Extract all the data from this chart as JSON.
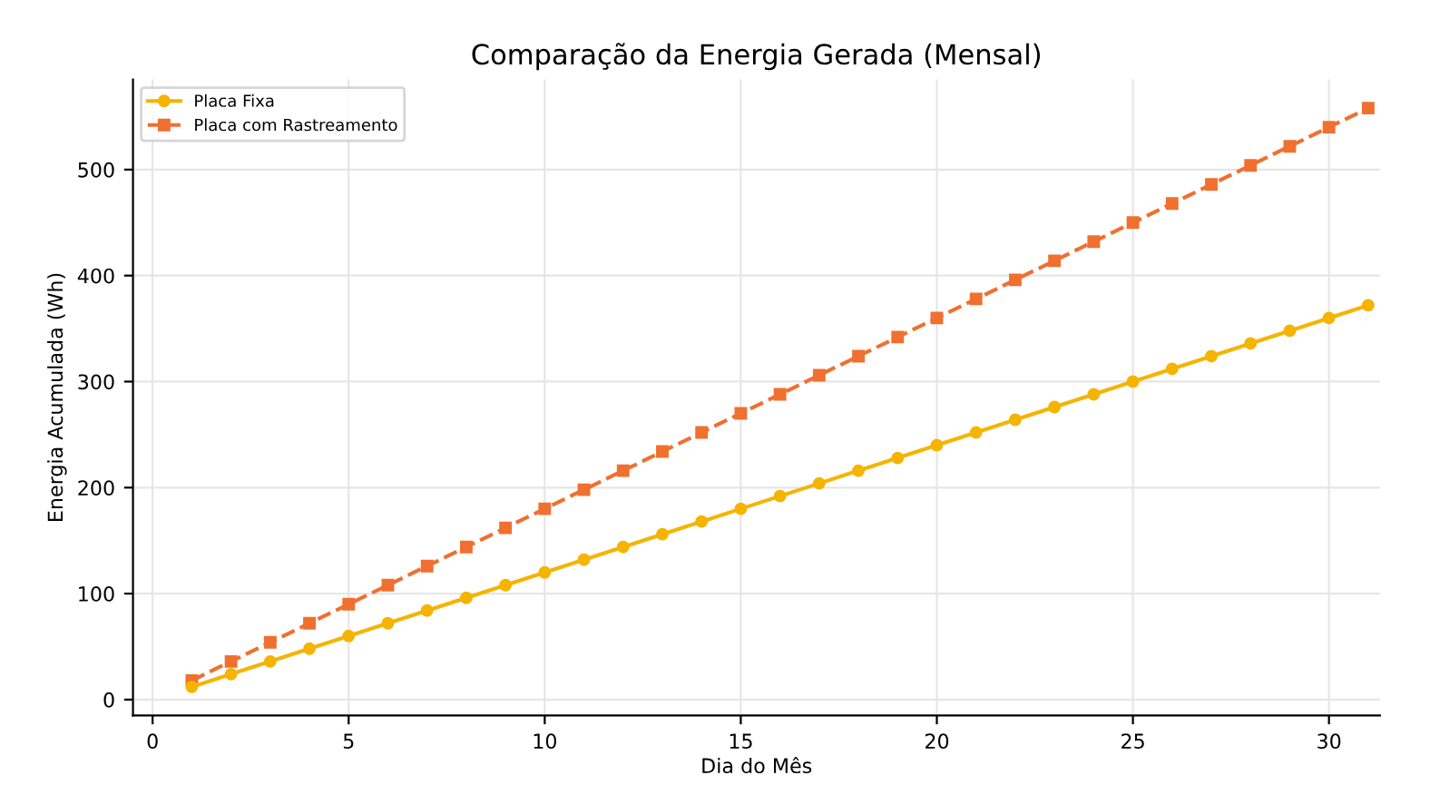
{
  "chart_data": {
    "type": "line",
    "title": "Comparação da Energia Gerada (Mensal)",
    "xlabel": "Dia do Mês",
    "ylabel": "Energia Acumulada (Wh)",
    "x": [
      1,
      2,
      3,
      4,
      5,
      6,
      7,
      8,
      9,
      10,
      11,
      12,
      13,
      14,
      15,
      16,
      17,
      18,
      19,
      20,
      21,
      22,
      23,
      24,
      25,
      26,
      27,
      28,
      29,
      30,
      31
    ],
    "series": [
      {
        "name": "Placa Fixa",
        "color": "#f5b400",
        "marker": "circle",
        "line_style": "solid",
        "values": [
          12,
          24,
          36,
          48,
          60,
          72,
          84,
          96,
          108,
          120,
          132,
          144,
          156,
          168,
          180,
          192,
          204,
          216,
          228,
          240,
          252,
          264,
          276,
          288,
          300,
          312,
          324,
          336,
          348,
          360,
          372
        ]
      },
      {
        "name": "Placa com Rastreamento",
        "color": "#f07030",
        "marker": "square",
        "line_style": "dashed",
        "values": [
          18,
          36,
          54,
          72,
          90,
          108,
          126,
          144,
          162,
          180,
          198,
          216,
          234,
          252,
          270,
          288,
          306,
          324,
          342,
          360,
          378,
          396,
          414,
          432,
          450,
          468,
          486,
          504,
          522,
          540,
          558
        ]
      }
    ],
    "xlim": [
      -0.5,
      31.3
    ],
    "ylim": [
      -15,
      585
    ],
    "xticks": [
      0,
      5,
      10,
      15,
      20,
      25,
      30
    ],
    "yticks": [
      0,
      100,
      200,
      300,
      400,
      500
    ],
    "grid": true,
    "legend": "top left"
  }
}
